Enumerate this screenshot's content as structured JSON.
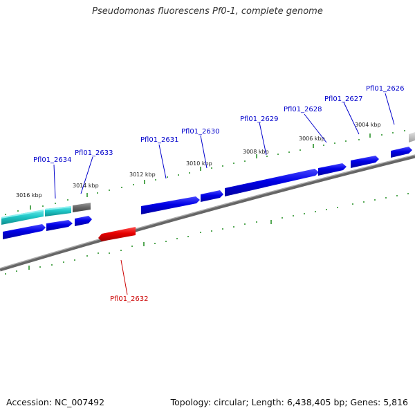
{
  "title": "Pseudomonas fluorescens Pf0-1, complete genome",
  "footer": {
    "accession": "Accession: NC_007492",
    "topology": "Topology: circular; Length: 6,438,405 bp; Genes: 5,816"
  },
  "ticks": [
    "3016 kbp",
    "3014 kbp",
    "3012 kbp",
    "3010 kbp",
    "3008 kbp",
    "3006 kbp",
    "3004 kbp"
  ],
  "gene_labels": [
    {
      "id": "Pfl01_2634",
      "color": "#0000cc"
    },
    {
      "id": "Pfl01_2633",
      "color": "#0000cc"
    },
    {
      "id": "Pfl01_2631",
      "color": "#0000cc"
    },
    {
      "id": "Pfl01_2630",
      "color": "#0000cc"
    },
    {
      "id": "Pfl01_2629",
      "color": "#0000cc"
    },
    {
      "id": "Pfl01_2628",
      "color": "#0000cc"
    },
    {
      "id": "Pfl01_2627",
      "color": "#0000cc"
    },
    {
      "id": "Pfl01_2626",
      "color": "#0000cc"
    },
    {
      "id": "Pfl01_2632",
      "color": "#cc0000"
    }
  ],
  "colors": {
    "forward_gene": "#0000e6",
    "reverse_gene": "#e60000",
    "rna_gene": "#20c8c8",
    "pseudo_gene": "#707070",
    "tick": "#1a8a1a",
    "backbone": "#888888"
  }
}
